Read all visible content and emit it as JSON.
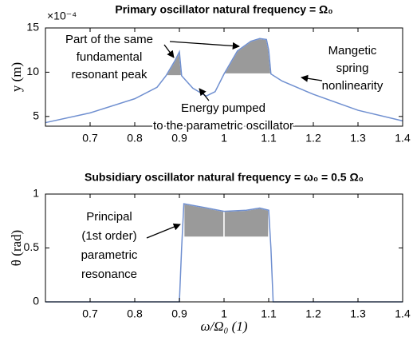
{
  "chart_data": [
    {
      "type": "line",
      "title": "Primary oscillator natural frequency = Ω₀",
      "ylabel": "y (m)",
      "y_exponent_label": "×10⁻⁴",
      "x": [
        0.6,
        0.7,
        0.8,
        0.85,
        0.87,
        0.89,
        0.9,
        0.905,
        0.93,
        0.96,
        0.98,
        1.0,
        1.03,
        1.06,
        1.08,
        1.095,
        1.1,
        1.105,
        1.13,
        1.2,
        1.3,
        1.4
      ],
      "values": [
        4.3,
        5.4,
        7.0,
        8.3,
        9.6,
        11.3,
        12.3,
        9.6,
        8.2,
        7.3,
        7.8,
        9.8,
        12.4,
        13.5,
        13.8,
        13.7,
        12.5,
        9.8,
        9.0,
        7.5,
        5.7,
        4.5
      ],
      "color": "#6f8fd0",
      "fills": [
        {
          "from": 0.87,
          "to": 0.905,
          "base": 9.6
        },
        {
          "from": 1.0,
          "to": 1.105,
          "base": 9.8
        }
      ],
      "xlim": [
        0.6,
        1.4
      ],
      "xticks": [
        0.7,
        0.8,
        0.9,
        1,
        1.1,
        1.2,
        1.3,
        1.4
      ],
      "ylim": [
        3.9,
        15
      ],
      "yticks": [
        5,
        10,
        15
      ],
      "annotations": [
        {
          "lines": [
            "Part of the same",
            "fundamental",
            "resonant peak"
          ]
        },
        {
          "lines": [
            "Mangetic",
            "spring",
            "nonlinearity"
          ]
        },
        {
          "lines": [
            "Energy pumped",
            "to the parametric oscillator"
          ]
        }
      ]
    },
    {
      "type": "line",
      "title": "Subsidiary oscillator natural frequency = ω₀ = 0.5 Ω₀",
      "ylabel": "θ (rad)",
      "xlabel": "ω/Ω₀ (1)",
      "x": [
        0.6,
        0.9,
        0.905,
        0.91,
        0.95,
        1.0,
        1.05,
        1.08,
        1.1,
        1.105,
        1.11,
        1.4
      ],
      "values": [
        0,
        0,
        0.5,
        0.91,
        0.88,
        0.84,
        0.85,
        0.87,
        0.85,
        0.5,
        0,
        0
      ],
      "color": "#6f8fd0",
      "fills": [
        {
          "from": 0.91,
          "to": 1.0,
          "base": 0.6
        },
        {
          "from": 1.0,
          "to": 1.1,
          "base": 0.6
        }
      ],
      "xlim": [
        0.6,
        1.4
      ],
      "xticks": [
        0.7,
        0.8,
        0.9,
        1,
        1.1,
        1.2,
        1.3,
        1.4
      ],
      "ylim": [
        0,
        1
      ],
      "yticks": [
        0,
        0.5,
        1
      ],
      "annotations": [
        {
          "lines": [
            "Principal",
            "(1st order)",
            "parametric",
            "resonance"
          ]
        }
      ]
    }
  ]
}
